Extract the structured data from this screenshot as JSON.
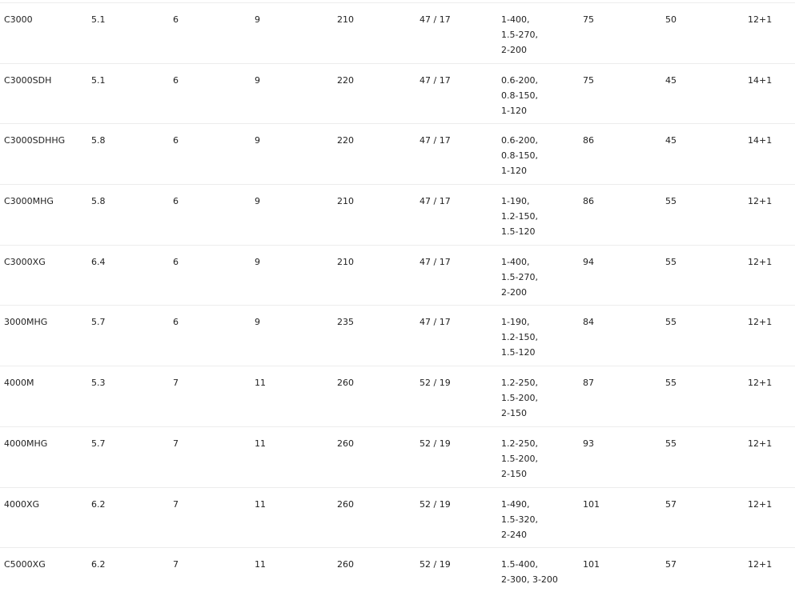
{
  "table": {
    "rows": [
      [
        "C3000",
        "5.1",
        "6",
        "9",
        "210",
        "47 / 17",
        [
          "1-400,",
          "1.5-270,",
          "2-200"
        ],
        "75",
        "50",
        "12+1"
      ],
      [
        "C3000SDH",
        "5.1",
        "6",
        "9",
        "220",
        "47 / 17",
        [
          "0.6-200,",
          "0.8-150,",
          "1-120"
        ],
        "75",
        "45",
        "14+1"
      ],
      [
        "C3000SDHHG",
        "5.8",
        "6",
        "9",
        "220",
        "47 / 17",
        [
          "0.6-200,",
          "0.8-150,",
          "1-120"
        ],
        "86",
        "45",
        "14+1"
      ],
      [
        "C3000MHG",
        "5.8",
        "6",
        "9",
        "210",
        "47 / 17",
        [
          "1-190,",
          "1.2-150,",
          "1.5-120"
        ],
        "86",
        "55",
        "12+1"
      ],
      [
        "C3000XG",
        "6.4",
        "6",
        "9",
        "210",
        "47 / 17",
        [
          "1-400,",
          "1.5-270,",
          "2-200"
        ],
        "94",
        "55",
        "12+1"
      ],
      [
        "3000MHG",
        "5.7",
        "6",
        "9",
        "235",
        "47 / 17",
        [
          "1-190,",
          "1.2-150,",
          "1.5-120"
        ],
        "84",
        "55",
        "12+1"
      ],
      [
        "4000M",
        "5.3",
        "7",
        "11",
        "260",
        "52 / 19",
        [
          "1.2-250,",
          "1.5-200,",
          "2-150"
        ],
        "87",
        "55",
        "12+1"
      ],
      [
        "4000MHG",
        "5.7",
        "7",
        "11",
        "260",
        "52 / 19",
        [
          "1.2-250,",
          "1.5-200,",
          "2-150"
        ],
        "93",
        "55",
        "12+1"
      ],
      [
        "4000XG",
        "6.2",
        "7",
        "11",
        "260",
        "52 / 19",
        [
          "1-490,",
          "1.5-320,",
          "2-240"
        ],
        "101",
        "57",
        "12+1"
      ],
      [
        "C5000XG",
        "6.2",
        "7",
        "11",
        "260",
        "52 / 19",
        [
          "1.5-400,",
          "2-300, 3-200"
        ],
        "101",
        "57",
        "12+1"
      ]
    ]
  }
}
